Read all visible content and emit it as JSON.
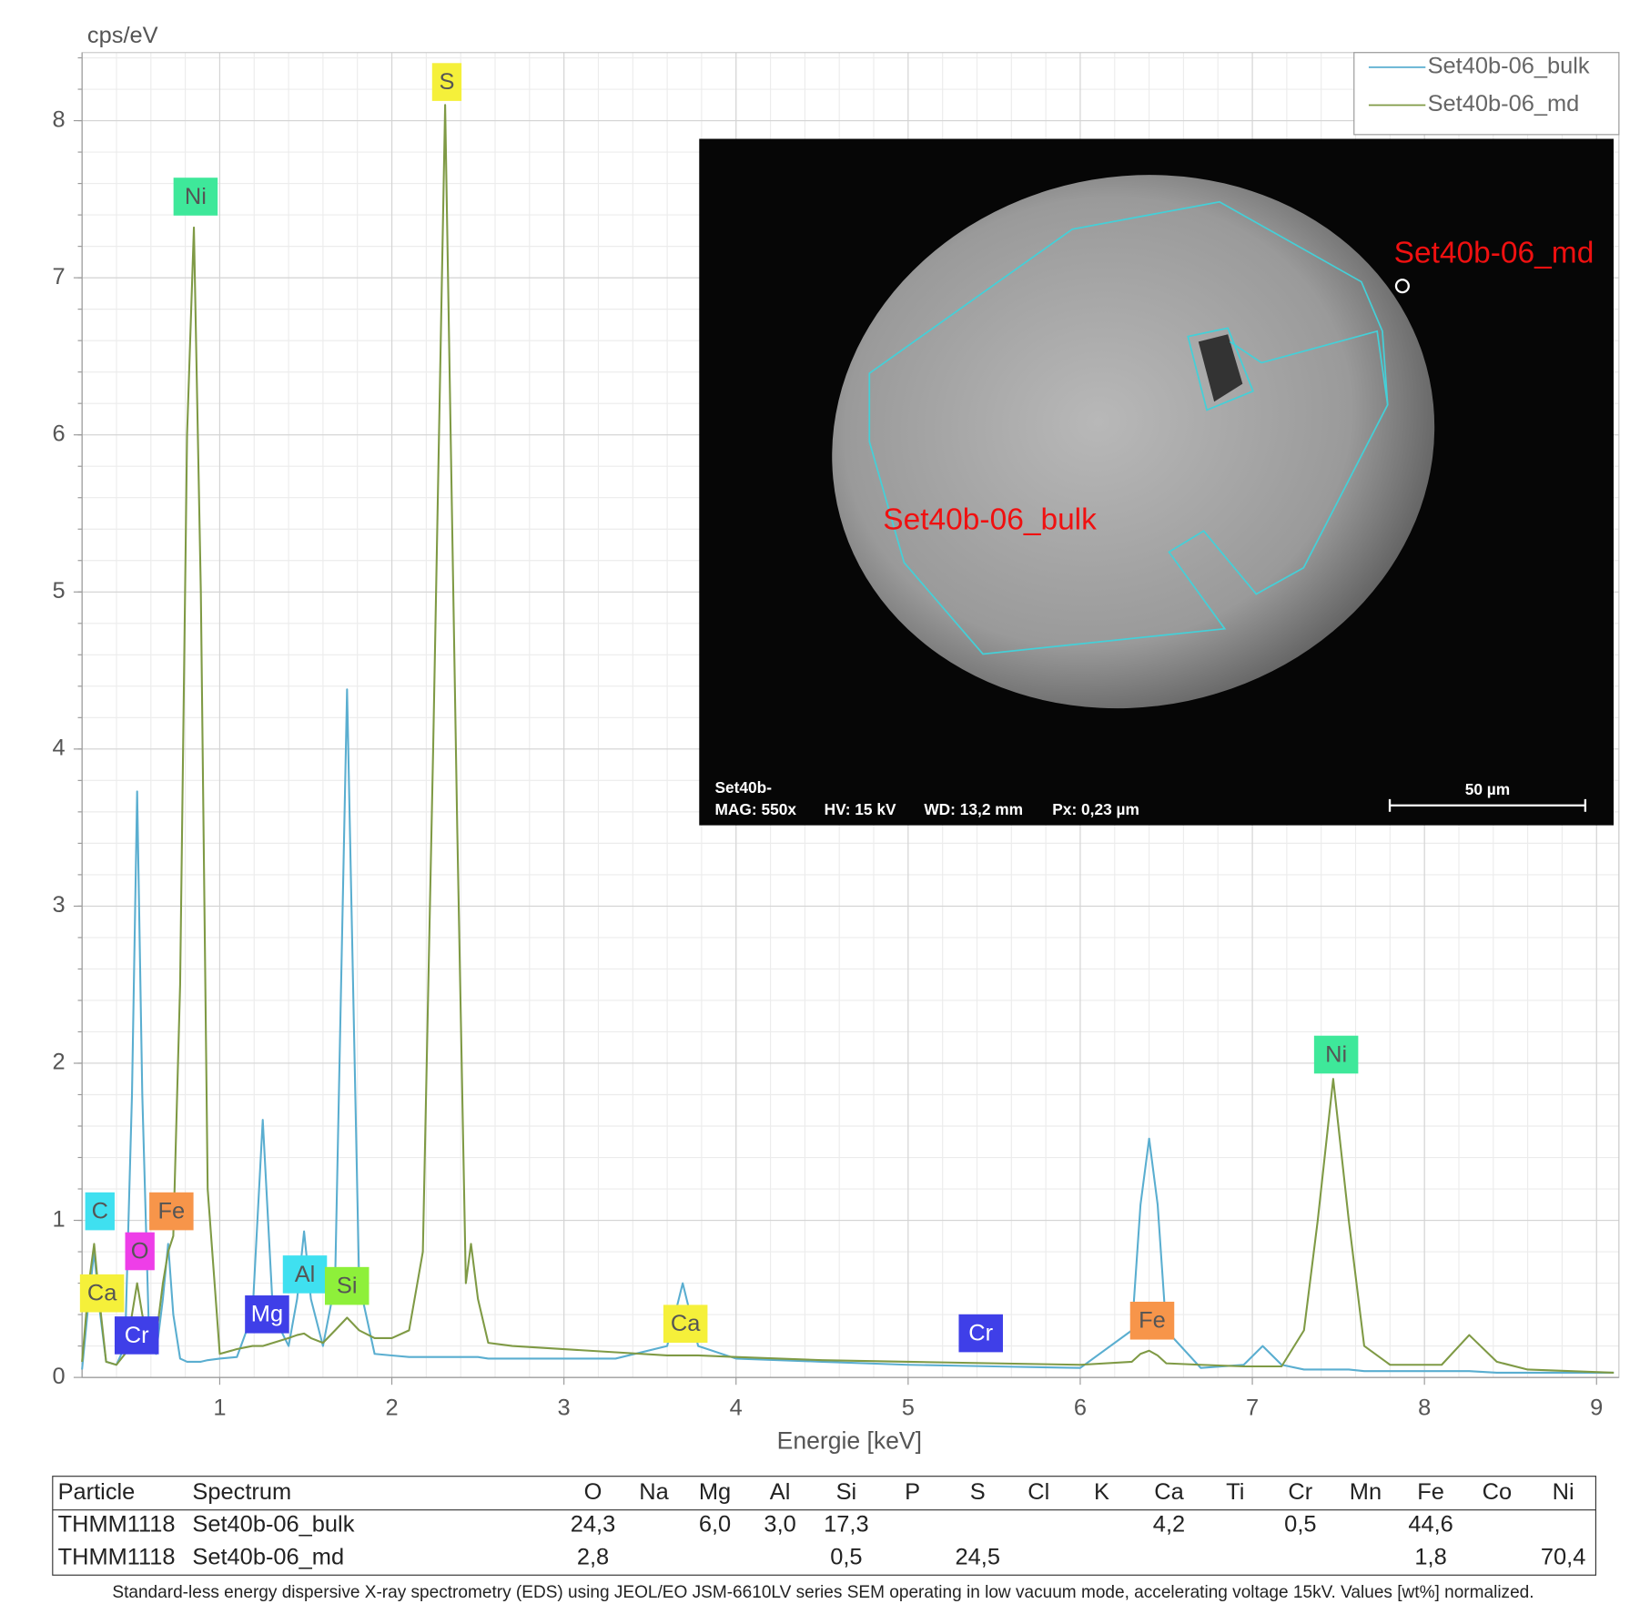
{
  "chart_data": {
    "type": "line",
    "xlabel": "Energie [keV]",
    "ylabel": "cps/eV",
    "x": [
      0.2,
      0.24,
      0.27,
      0.3,
      0.34,
      0.4,
      0.45,
      0.49,
      0.52,
      0.55,
      0.59,
      0.63,
      0.67,
      0.7,
      0.73,
      0.77,
      0.81,
      0.85,
      0.89,
      0.93,
      1.0,
      1.1,
      1.19,
      1.25,
      1.31,
      1.4,
      1.45,
      1.49,
      1.53,
      1.6,
      1.67,
      1.74,
      1.81,
      1.9,
      2.0,
      2.1,
      2.18,
      2.24,
      2.31,
      2.38,
      2.43,
      2.46,
      2.5,
      2.56,
      2.7,
      3.0,
      3.3,
      3.6,
      3.69,
      3.78,
      4.0,
      4.5,
      5.0,
      5.5,
      6.0,
      6.3,
      6.35,
      6.4,
      6.45,
      6.5,
      6.7,
      6.95,
      7.06,
      7.17,
      7.3,
      7.38,
      7.47,
      7.56,
      7.65,
      7.8,
      8.1,
      8.26,
      8.42,
      8.6,
      9.1
    ],
    "series": [
      {
        "name": "Set40b-06_bulk",
        "color": "#5aaed0",
        "values": [
          0.05,
          0.5,
          0.8,
          0.45,
          0.1,
          0.08,
          0.2,
          1.8,
          3.73,
          1.8,
          0.25,
          0.15,
          0.5,
          0.85,
          0.4,
          0.12,
          0.1,
          0.1,
          0.1,
          0.11,
          0.12,
          0.13,
          0.4,
          1.64,
          0.4,
          0.2,
          0.5,
          0.93,
          0.5,
          0.2,
          0.6,
          4.38,
          0.6,
          0.15,
          0.14,
          0.13,
          0.13,
          0.13,
          0.13,
          0.13,
          0.13,
          0.13,
          0.13,
          0.12,
          0.12,
          0.12,
          0.12,
          0.2,
          0.6,
          0.2,
          0.12,
          0.1,
          0.08,
          0.07,
          0.06,
          0.3,
          1.1,
          1.52,
          1.1,
          0.3,
          0.06,
          0.08,
          0.2,
          0.08,
          0.05,
          0.05,
          0.05,
          0.05,
          0.04,
          0.04,
          0.04,
          0.04,
          0.03,
          0.03,
          0.03
        ]
      },
      {
        "name": "Set40b-06_md",
        "color": "#7f9a45",
        "values": [
          0.1,
          0.6,
          0.85,
          0.5,
          0.1,
          0.08,
          0.15,
          0.4,
          0.6,
          0.4,
          0.2,
          0.25,
          0.6,
          0.8,
          0.9,
          2.5,
          6.0,
          7.32,
          5.0,
          1.2,
          0.15,
          0.18,
          0.2,
          0.2,
          0.22,
          0.25,
          0.27,
          0.28,
          0.25,
          0.22,
          0.3,
          0.38,
          0.3,
          0.25,
          0.25,
          0.3,
          0.8,
          4.0,
          8.1,
          3.5,
          0.6,
          0.85,
          0.5,
          0.22,
          0.2,
          0.18,
          0.16,
          0.14,
          0.14,
          0.14,
          0.13,
          0.11,
          0.1,
          0.09,
          0.08,
          0.1,
          0.15,
          0.17,
          0.14,
          0.09,
          0.08,
          0.07,
          0.07,
          0.07,
          0.3,
          1.0,
          1.9,
          1.0,
          0.2,
          0.08,
          0.08,
          0.27,
          0.1,
          0.05,
          0.03
        ]
      }
    ],
    "xlim": [
      0.2,
      9.13
    ],
    "ylim": [
      0,
      8.4
    ],
    "xticks": [
      1,
      2,
      3,
      4,
      5,
      6,
      7,
      8,
      9
    ],
    "yticks": [
      0,
      1,
      2,
      3,
      4,
      5,
      6,
      7,
      8
    ],
    "grid": true,
    "legend": "upper right",
    "annotations": [
      {
        "text": "C",
        "color": "#3fe0f0"
      },
      {
        "text": "Fe",
        "color": "#f7954a"
      },
      {
        "text": "O",
        "color": "#ee3ee8"
      },
      {
        "text": "Ca",
        "color": "#f5f03a"
      },
      {
        "text": "Cr",
        "color": "#3f3fe8"
      },
      {
        "text": "Ni",
        "color": "#3ee89a"
      },
      {
        "text": "S",
        "color": "#f5f03a"
      },
      {
        "text": "Mg",
        "color": "#3f3fe8"
      },
      {
        "text": "Al",
        "color": "#3fe0f0"
      },
      {
        "text": "Si",
        "color": "#8ef03a"
      },
      {
        "text": "Ca",
        "color": "#f5f03a"
      },
      {
        "text": "Cr",
        "color": "#3f3fe8"
      },
      {
        "text": "Fe",
        "color": "#f7954a"
      },
      {
        "text": "Ni",
        "color": "#3ee89a"
      }
    ]
  },
  "inset_image": {
    "labels": [
      "Set40b-06_md",
      "Set40b-06_bulk"
    ],
    "footer": [
      "Set40b-",
      "MAG: 550x",
      "HV: 15 kV",
      "WD: 13,2 mm",
      "Px: 0,23 µm"
    ],
    "scale": "50 µm"
  },
  "table": {
    "columns": [
      "Particle",
      "Spectrum",
      "O",
      "Na",
      "Mg",
      "Al",
      "Si",
      "P",
      "S",
      "Cl",
      "K",
      "Ca",
      "Ti",
      "Cr",
      "Mn",
      "Fe",
      "Co",
      "Ni"
    ],
    "rows": [
      [
        "THMM1118",
        "Set40b-06_bulk",
        "24,3",
        null,
        "6,0",
        "3,0",
        "17,3",
        null,
        null,
        null,
        null,
        "4,2",
        null,
        "0,5",
        null,
        "44,6",
        null,
        null
      ],
      [
        "THMM1118",
        "Set40b-06_md",
        "2,8",
        null,
        null,
        null,
        "0,5",
        null,
        "24,5",
        null,
        null,
        null,
        null,
        null,
        null,
        "1,8",
        null,
        "70,4"
      ]
    ],
    "note": "Standard-less energy dispersive X-ray spectrometry (EDS) using JEOL/EO JSM-6610LV series SEM operating in low vacuum mode, accelerating voltage 15kV. Values [wt%] normalized."
  }
}
